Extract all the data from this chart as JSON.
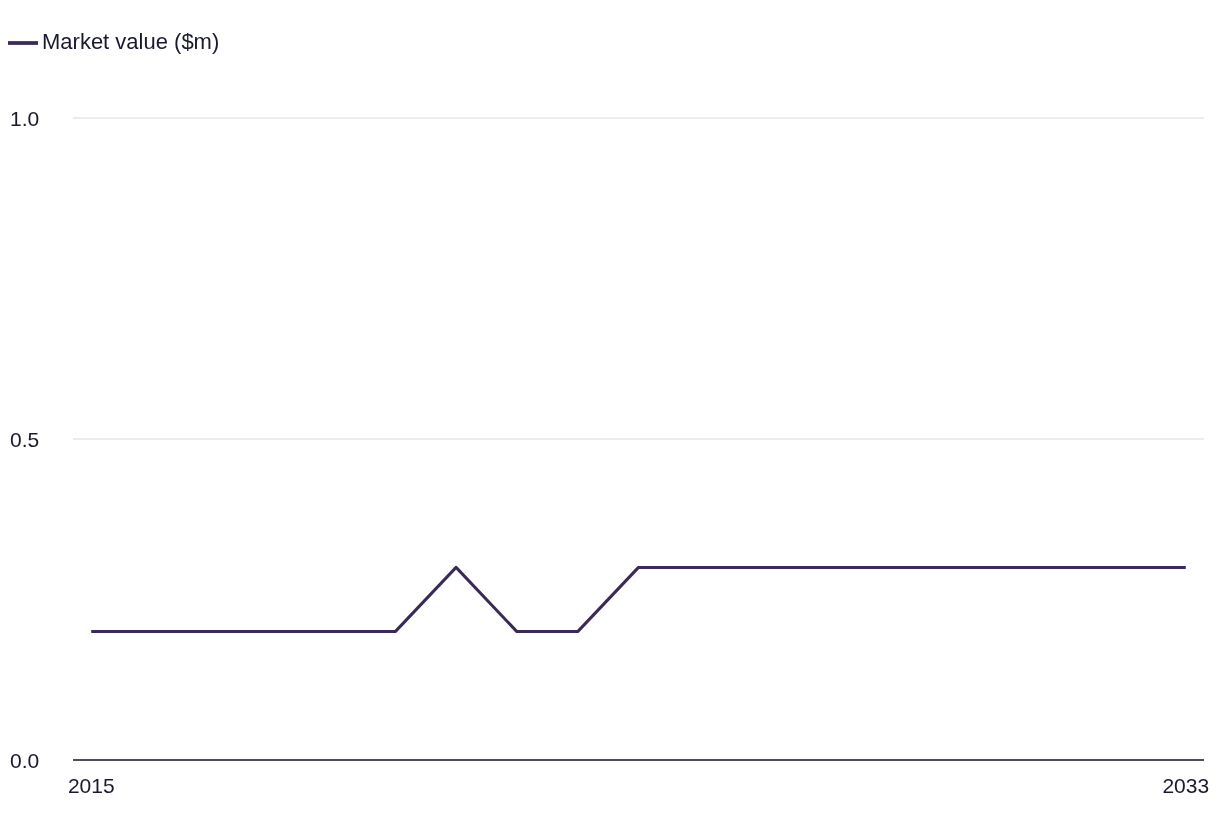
{
  "chart_data": {
    "type": "line",
    "x": [
      2015,
      2016,
      2017,
      2018,
      2019,
      2020,
      2021,
      2022,
      2023,
      2024,
      2025,
      2026,
      2027,
      2028,
      2029,
      2030,
      2031,
      2032,
      2033
    ],
    "series": [
      {
        "name": "Market value ($m)",
        "color": "#3b2a57",
        "values": [
          0.2,
          0.2,
          0.2,
          0.2,
          0.2,
          0.2,
          0.3,
          0.2,
          0.2,
          0.3,
          0.3,
          0.3,
          0.3,
          0.3,
          0.3,
          0.3,
          0.3,
          0.3,
          0.3
        ]
      }
    ],
    "xlim": [
      2014.7,
      2033.3
    ],
    "xticks": [
      2015,
      2033
    ],
    "ylim": [
      0,
      1
    ],
    "yticks": [
      {
        "value": 0,
        "label": "0.0"
      },
      {
        "value": 0.5,
        "label": "0.5"
      },
      {
        "value": 1,
        "label": "1.0"
      }
    ],
    "grid": "y",
    "legend": "top left",
    "marker": "none",
    "line_style": "solid"
  }
}
